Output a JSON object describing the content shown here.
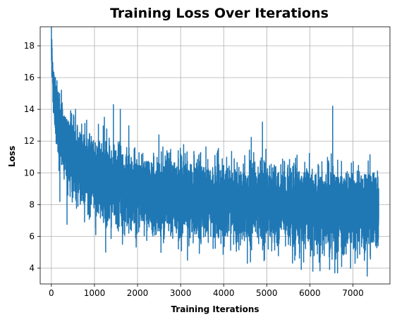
{
  "chart_data": {
    "type": "line",
    "title": "Training Loss Over Iterations",
    "xlabel": "Training Iterations",
    "ylabel": "Loss",
    "xlim": [
      -260,
      7860
    ],
    "ylim": [
      3.0,
      19.2
    ],
    "xticks": [
      0,
      1000,
      2000,
      3000,
      4000,
      5000,
      6000,
      7000
    ],
    "yticks": [
      4,
      6,
      8,
      10,
      12,
      14,
      16,
      18
    ],
    "grid": true,
    "series": [
      {
        "color": "#1f77b4",
        "n_points": 7600,
        "trend": {
          "x": [
            0,
            20,
            50,
            100,
            200,
            400,
            600,
            1000,
            1500,
            2000,
            3000,
            4000,
            5000,
            6000,
            7000,
            7600
          ],
          "y": [
            18.0,
            16.5,
            15.2,
            14.1,
            12.8,
            11.3,
            10.6,
            9.7,
            9.2,
            8.9,
            8.5,
            8.2,
            8.0,
            7.8,
            7.7,
            7.6
          ]
        },
        "noise_std": 1.15,
        "spikes": [
          {
            "x": 10,
            "y": 18.4
          },
          {
            "x": 60,
            "y": 16.2
          },
          {
            "x": 130,
            "y": 15.8
          },
          {
            "x": 250,
            "y": 14.4
          },
          {
            "x": 560,
            "y": 14.0
          },
          {
            "x": 1230,
            "y": 13.5
          },
          {
            "x": 1440,
            "y": 14.3
          },
          {
            "x": 1600,
            "y": 14.0
          },
          {
            "x": 4900,
            "y": 13.2
          },
          {
            "x": 6530,
            "y": 14.2
          },
          {
            "x": 1030,
            "y": 6.1
          },
          {
            "x": 1650,
            "y": 5.5
          },
          {
            "x": 3160,
            "y": 4.5
          },
          {
            "x": 4550,
            "y": 4.3
          },
          {
            "x": 5650,
            "y": 4.5
          },
          {
            "x": 6070,
            "y": 3.8
          },
          {
            "x": 6580,
            "y": 3.7
          },
          {
            "x": 7050,
            "y": 4.3
          }
        ]
      }
    ]
  }
}
